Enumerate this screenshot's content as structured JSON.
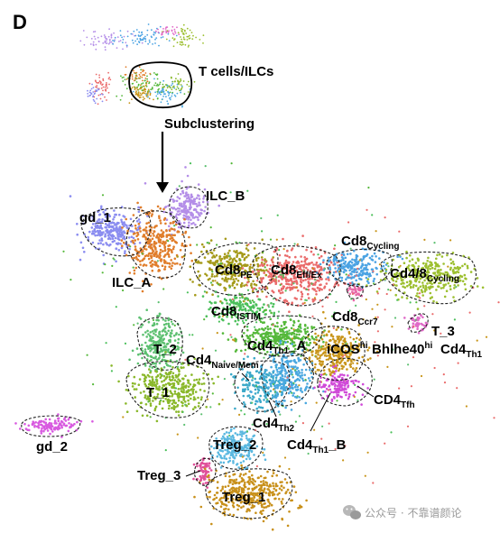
{
  "panel_letter": "D",
  "overview_label": "T cells/ILCs",
  "step_label": "Subclustering",
  "clusters": [
    {
      "id": "gd_1",
      "text": "gd_1",
      "color": "#8a8cf0"
    },
    {
      "id": "ilc_b",
      "text": "ILC_B",
      "color": "#b48ee8"
    },
    {
      "id": "ilc_a",
      "text": "ILC_A",
      "color": "#e07d2a"
    },
    {
      "id": "cd8_pe",
      "base": "Cd8",
      "sub": "PE",
      "color": "#a59a1a"
    },
    {
      "id": "cd8_effex",
      "base": "Cd8",
      "sub": "Eff/Ex",
      "color": "#ea6b6b"
    },
    {
      "id": "cd8_cycling",
      "base": "Cd8",
      "sub": "Cycling",
      "color": "#4ba3e3"
    },
    {
      "id": "cd48_cycling",
      "base": "Cd4/8",
      "sub": "Cycling",
      "color": "#9cbf2f"
    },
    {
      "id": "cd8_istim",
      "base": "Cd8",
      "sub": "ISTIM",
      "color": "#4bbf5a"
    },
    {
      "id": "cd8_ccr7",
      "base": "Cd8",
      "sub": "Ccr7",
      "color": "#e86aa8"
    },
    {
      "id": "t_3",
      "text": "T_3",
      "color": "#e06ac8"
    },
    {
      "id": "t_2",
      "text": "T_2",
      "color": "#5cc070"
    },
    {
      "id": "t_1",
      "text": "T_1",
      "color": "#8ab82a"
    },
    {
      "id": "cd4_th1_a",
      "base": "Cd4",
      "sub": "Th1",
      "tail": "_A",
      "color": "#55b83a"
    },
    {
      "id": "icos_hi",
      "base": "iCOS",
      "sup": "hi",
      "color": "#c8951a"
    },
    {
      "id": "bhlhe40_hi",
      "base": "Bhlhe40",
      "sup": "hi",
      "color": "#b0b0b0"
    },
    {
      "id": "cd4_th1",
      "base": "Cd4",
      "sub": "Th1",
      "color": "#b0b0b0"
    },
    {
      "id": "cd4_naive_mem",
      "base": "Cd4",
      "sub": "Naive/Mem",
      "color": "#3aa8c8"
    },
    {
      "id": "cd4_tfh",
      "base": "CD4",
      "sub": "Tfh",
      "color": "#d04ad8"
    },
    {
      "id": "cd4_th2",
      "base": "Cd4",
      "sub": "Th2",
      "color": "#4aa8e0"
    },
    {
      "id": "cd4_th1_b",
      "base": "Cd4",
      "sub": "Th1",
      "tail": "_B",
      "color": "#4aa8e0"
    },
    {
      "id": "gd_2",
      "text": "gd_2",
      "color": "#d85ae0"
    },
    {
      "id": "treg_2",
      "text": "Treg_2",
      "color": "#5ab8e0"
    },
    {
      "id": "treg_3",
      "text": "Treg_3",
      "color": "#e0509a"
    },
    {
      "id": "treg_1",
      "text": "Treg_1",
      "color": "#c8901a"
    }
  ],
  "watermark": {
    "icon": "wechat-icon",
    "text": "公众号 · 不靠谱颜论"
  }
}
